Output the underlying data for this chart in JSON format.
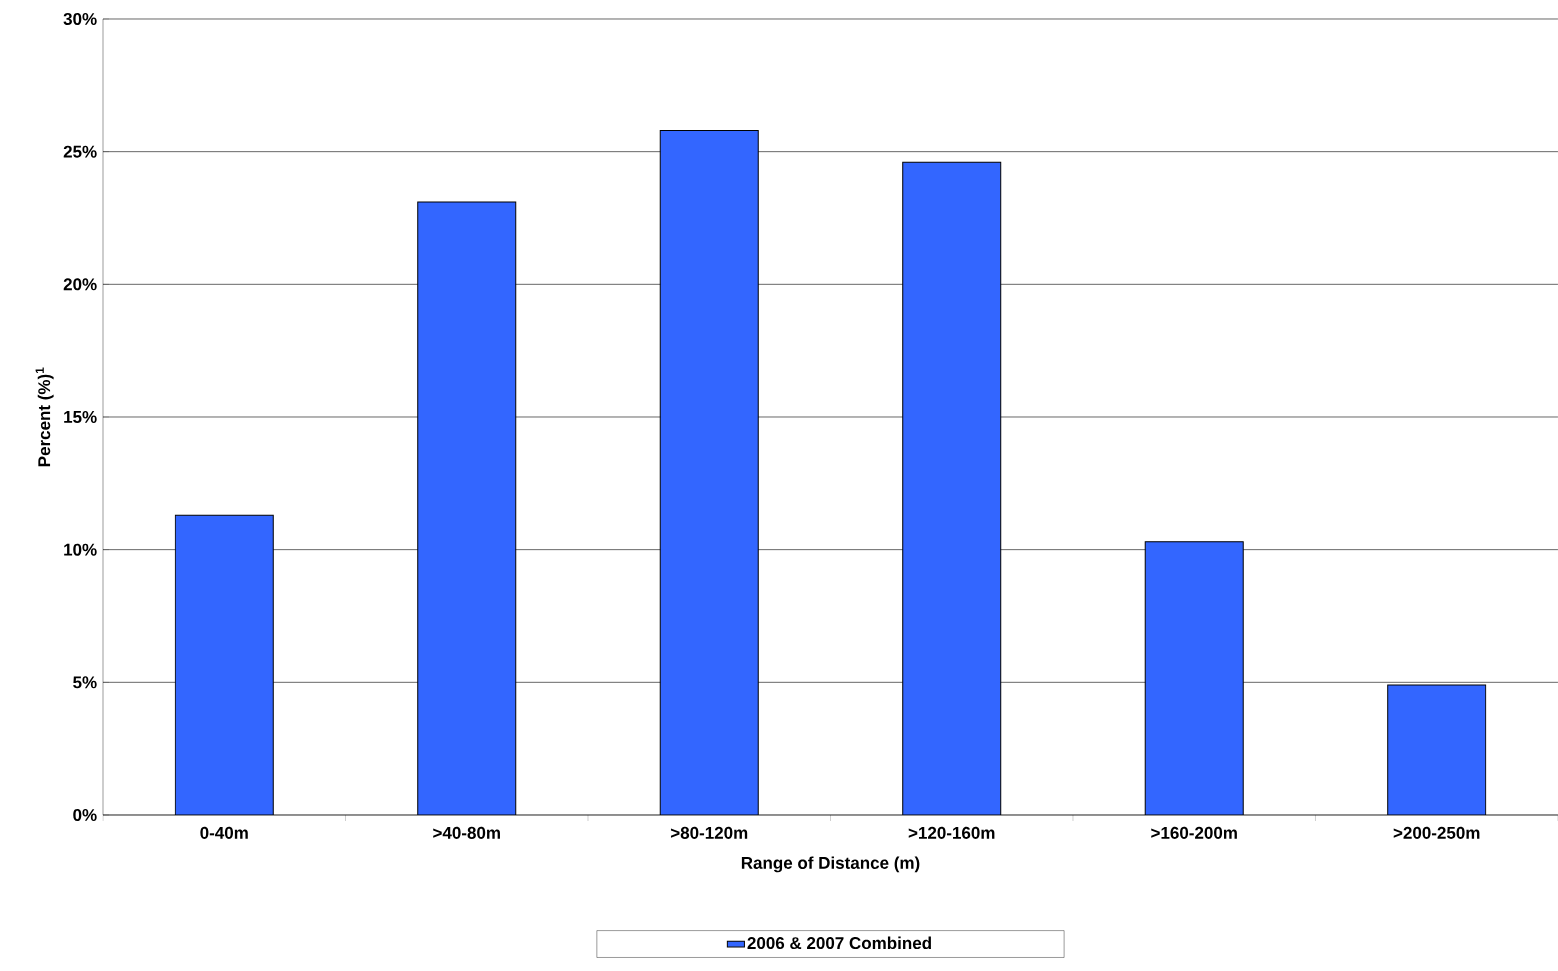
{
  "chart_data": {
    "type": "bar",
    "xlabel": "Range of Distance (m)",
    "ylabel": "Percent (%)$^{1}$",
    "categories": [
      "0-40m",
      ">40-80m",
      ">80-120m",
      ">120-160m",
      ">160-200m",
      ">200-250m"
    ],
    "series": [
      {
        "name": "2006 & 2007 Combined",
        "color": "#3366ff",
        "values": [
          11.3,
          23.1,
          25.8,
          24.6,
          10.3,
          4.9
        ]
      }
    ],
    "ylim": [
      0,
      30
    ],
    "yticks": [
      {
        "value": 0,
        "label": "0%"
      },
      {
        "value": 5,
        "label": "5%"
      },
      {
        "value": 10,
        "label": "10%"
      },
      {
        "value": 15,
        "label": "15%"
      },
      {
        "value": 20,
        "label": "20%"
      },
      {
        "value": 25,
        "label": "25%"
      },
      {
        "value": 30,
        "label": "30%"
      }
    ],
    "grid": "y",
    "legend": "bottom"
  }
}
